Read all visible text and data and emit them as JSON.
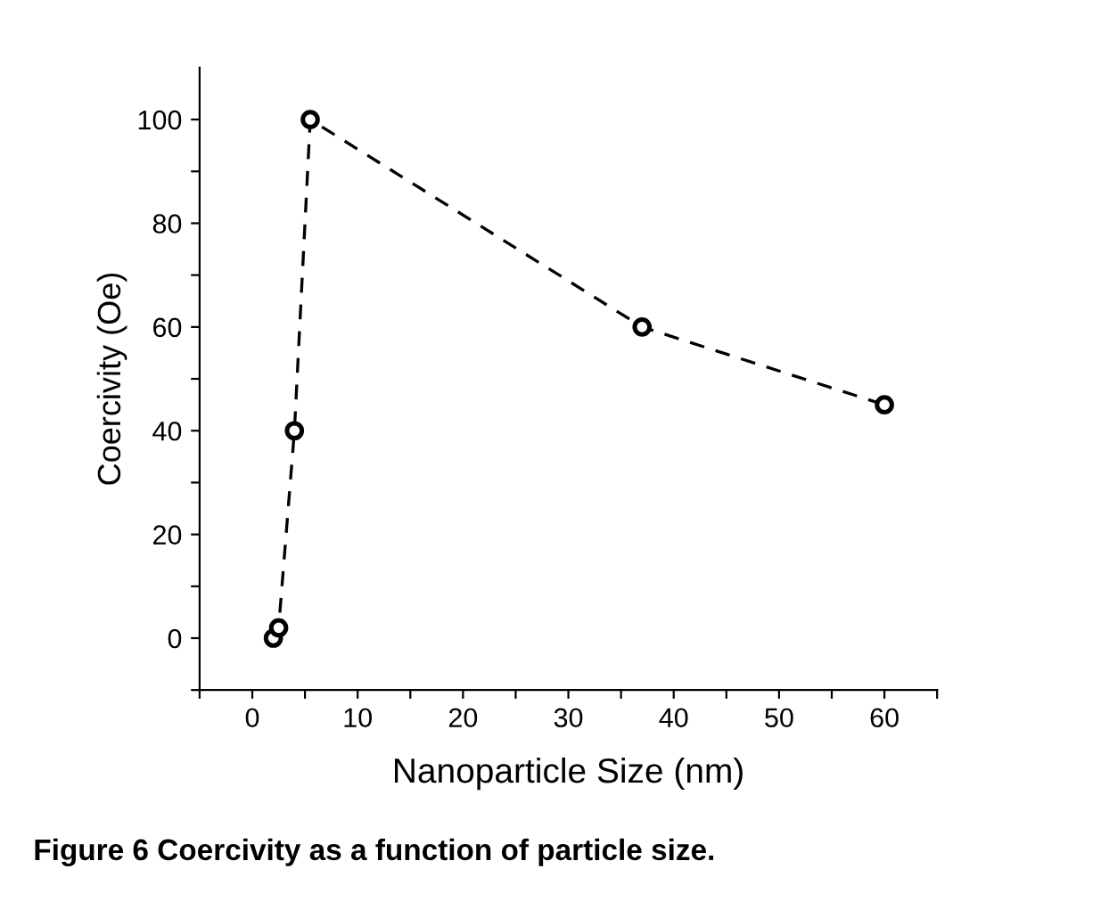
{
  "chart_data": {
    "type": "line",
    "xlabel": "Nanoparticle Size (nm)",
    "ylabel": "Coercivity (Oe)",
    "x": [
      2,
      2.5,
      4,
      5.5,
      37,
      60
    ],
    "values": [
      0,
      2,
      40,
      100,
      60,
      45
    ],
    "color": "#000000",
    "marker": "circle",
    "line_style": "dashed",
    "grid": false,
    "legend": false,
    "xlim": [
      -5,
      65
    ],
    "ylim": [
      -10,
      110
    ],
    "xticks": [
      {
        "value": -5,
        "label": null
      },
      0,
      {
        "value": 5,
        "label": null
      },
      10,
      {
        "value": 15,
        "label": null
      },
      20,
      {
        "value": 25,
        "label": null
      },
      30,
      {
        "value": 35,
        "label": null
      },
      40,
      {
        "value": 45,
        "label": null
      },
      50,
      {
        "value": 55,
        "label": null
      },
      60,
      {
        "value": 65,
        "label": null
      }
    ],
    "yticks": [
      {
        "value": -10,
        "label": null
      },
      0,
      {
        "value": 10,
        "label": null
      },
      20,
      {
        "value": 30,
        "label": null
      },
      40,
      {
        "value": 50,
        "label": null
      },
      60,
      {
        "value": 70,
        "label": null
      },
      80,
      {
        "value": 90,
        "label": null
      },
      100
    ],
    "annotations": [
      "Figure 6 Coercivity as a function of particle size."
    ]
  }
}
